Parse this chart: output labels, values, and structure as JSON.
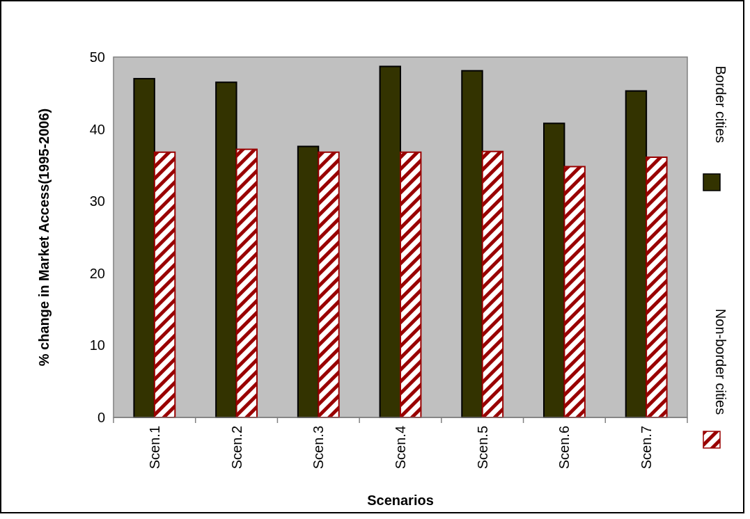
{
  "chart_data": {
    "type": "bar",
    "xlabel": "Scenarios",
    "ylabel": "% change in Market Access(1995-2006)",
    "categories": [
      "Scen.1",
      "Scen.2",
      "Scen.3",
      "Scen.4",
      "Scen.5",
      "Scen.6",
      "Scen.7"
    ],
    "series": [
      {
        "name": "Border cities",
        "color": "#333300",
        "values": [
          47.0,
          46.5,
          37.6,
          48.7,
          48.1,
          40.8,
          45.3
        ]
      },
      {
        "name": "Non-border cities",
        "color": "#990000",
        "values": [
          36.8,
          37.2,
          36.8,
          36.8,
          36.9,
          34.8,
          36.1
        ]
      }
    ],
    "ylim": [
      0,
      50
    ],
    "yticks": [
      0,
      10,
      20,
      30,
      40,
      50
    ],
    "grid": false,
    "legend": "right"
  }
}
